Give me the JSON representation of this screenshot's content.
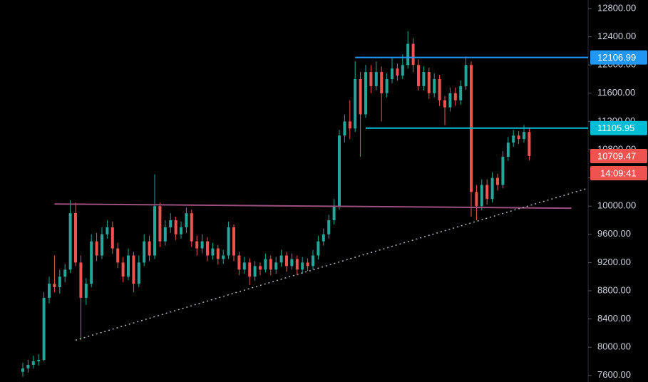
{
  "chart_data": {
    "type": "candlestick",
    "up_color": "#26a69a",
    "down_color": "#ef5350",
    "candles": [
      [
        7650,
        7780,
        7580,
        7700
      ],
      [
        7700,
        7820,
        7640,
        7750
      ],
      [
        7750,
        7880,
        7700,
        7800
      ],
      [
        7800,
        7900,
        7740,
        7820
      ],
      [
        7820,
        8780,
        7800,
        8700
      ],
      [
        8700,
        9000,
        8620,
        8900
      ],
      [
        8900,
        9300,
        8780,
        8850
      ],
      [
        8850,
        9100,
        8760,
        9000
      ],
      [
        9000,
        9180,
        8920,
        9100
      ],
      [
        9100,
        10080,
        9050,
        9900
      ],
      [
        9900,
        10050,
        9150,
        9200
      ],
      [
        9200,
        9300,
        8100,
        8700
      ],
      [
        8700,
        8980,
        8600,
        8900
      ],
      [
        8900,
        9600,
        8850,
        9500
      ],
      [
        9500,
        9620,
        9220,
        9300
      ],
      [
        9300,
        9700,
        9250,
        9600
      ],
      [
        9600,
        9800,
        9540,
        9700
      ],
      [
        9700,
        9780,
        9320,
        9400
      ],
      [
        9400,
        9480,
        9120,
        9200
      ],
      [
        9200,
        9280,
        8920,
        9000
      ],
      [
        9000,
        9400,
        8950,
        9300
      ],
      [
        9300,
        9350,
        8780,
        8900
      ],
      [
        8900,
        9300,
        8850,
        9200
      ],
      [
        9200,
        9600,
        9150,
        9500
      ],
      [
        9500,
        9580,
        9220,
        9300
      ],
      [
        9300,
        10450,
        9250,
        10000
      ],
      [
        10000,
        10050,
        9420,
        9500
      ],
      [
        9500,
        9800,
        9440,
        9700
      ],
      [
        9700,
        9900,
        9620,
        9800
      ],
      [
        9800,
        9850,
        9520,
        9600
      ],
      [
        9600,
        9780,
        9540,
        9700
      ],
      [
        9700,
        9980,
        9620,
        9900
      ],
      [
        9900,
        9950,
        9420,
        9500
      ],
      [
        9500,
        9580,
        9300,
        9400
      ],
      [
        9400,
        9600,
        9330,
        9500
      ],
      [
        9500,
        9560,
        9220,
        9300
      ],
      [
        9300,
        9480,
        9240,
        9400
      ],
      [
        9400,
        9450,
        9170,
        9250
      ],
      [
        9250,
        9380,
        9180,
        9300
      ],
      [
        9300,
        9780,
        9250,
        9700
      ],
      [
        9700,
        9740,
        9220,
        9300
      ],
      [
        9300,
        9350,
        9020,
        9100
      ],
      [
        9100,
        9280,
        9040,
        9200
      ],
      [
        9200,
        9260,
        8880,
        9000
      ],
      [
        9000,
        9220,
        8940,
        9150
      ],
      [
        9150,
        9200,
        9020,
        9100
      ],
      [
        9100,
        9330,
        9060,
        9250
      ],
      [
        9250,
        9300,
        9020,
        9100
      ],
      [
        9100,
        9280,
        9040,
        9200
      ],
      [
        9200,
        9380,
        9140,
        9300
      ],
      [
        9300,
        9350,
        9070,
        9150
      ],
      [
        9150,
        9330,
        9100,
        9250
      ],
      [
        9250,
        9300,
        9020,
        9100
      ],
      [
        9100,
        9280,
        9040,
        9200
      ],
      [
        9200,
        9260,
        9080,
        9150
      ],
      [
        9150,
        9380,
        9100,
        9300
      ],
      [
        9300,
        9580,
        9240,
        9500
      ],
      [
        9500,
        9680,
        9440,
        9600
      ],
      [
        9600,
        9880,
        9540,
        9800
      ],
      [
        9800,
        10100,
        9740,
        10000
      ],
      [
        10000,
        11080,
        9950,
        11000
      ],
      [
        11000,
        11300,
        10900,
        11200
      ],
      [
        11200,
        11500,
        10950,
        11100
      ],
      [
        11100,
        12050,
        11050,
        11800
      ],
      [
        11800,
        11900,
        10700,
        11300
      ],
      [
        11300,
        12000,
        11250,
        11900
      ],
      [
        11900,
        12000,
        11600,
        11700
      ],
      [
        11700,
        12050,
        11640,
        11900
      ],
      [
        11900,
        11980,
        11200,
        11600
      ],
      [
        11600,
        11880,
        11540,
        11800
      ],
      [
        11800,
        12100,
        11740,
        11950
      ],
      [
        11950,
        12020,
        11780,
        11850
      ],
      [
        11850,
        12150,
        11800,
        12000
      ],
      [
        12000,
        12480,
        11950,
        12300
      ],
      [
        12300,
        12380,
        11900,
        12000
      ],
      [
        12000,
        12080,
        11640,
        11700
      ],
      [
        11700,
        11980,
        11640,
        11900
      ],
      [
        11900,
        11960,
        11520,
        11600
      ],
      [
        11600,
        11880,
        11540,
        11800
      ],
      [
        11800,
        11860,
        11420,
        11500
      ],
      [
        11500,
        11560,
        11150,
        11400
      ],
      [
        11400,
        11680,
        11340,
        11600
      ],
      [
        11600,
        11680,
        11420,
        11500
      ],
      [
        11500,
        11780,
        11440,
        11700
      ],
      [
        11700,
        12120,
        11650,
        12000
      ],
      [
        12000,
        12050,
        9850,
        10200
      ],
      [
        10200,
        10300,
        9800,
        10000
      ],
      [
        10000,
        10380,
        9940,
        10300
      ],
      [
        10300,
        10380,
        10020,
        10100
      ],
      [
        10100,
        10480,
        10050,
        10400
      ],
      [
        10400,
        10460,
        10220,
        10300
      ],
      [
        10300,
        10780,
        10250,
        10700
      ],
      [
        10700,
        10980,
        10640,
        10900
      ],
      [
        10900,
        11080,
        10840,
        11000
      ],
      [
        11000,
        11060,
        10880,
        10950
      ],
      [
        10950,
        11150,
        10900,
        11050
      ],
      [
        11050,
        11100,
        10650,
        10709.47
      ]
    ],
    "ylim": [
      7507,
      12921
    ],
    "yticks": [
      {
        "value": 7600,
        "label": "7600.00"
      },
      {
        "value": 8000,
        "label": "8000.00"
      },
      {
        "value": 8400,
        "label": "8400.00"
      },
      {
        "value": 8800,
        "label": "8800.00"
      },
      {
        "value": 9200,
        "label": "9200.00"
      },
      {
        "value": 9600,
        "label": "9600.00"
      },
      {
        "value": 10000,
        "label": "10000.00"
      },
      {
        "value": 10400,
        "label": "10400.00"
      },
      {
        "value": 10800,
        "label": "10800.00"
      },
      {
        "value": 11200,
        "label": "11200.00"
      },
      {
        "value": 11600,
        "label": "11600.00"
      },
      {
        "value": 12000,
        "label": "12000.00"
      },
      {
        "value": 12400,
        "label": "12400.00"
      },
      {
        "value": 12800,
        "label": "12800.00"
      }
    ],
    "levels": [
      {
        "value": 12106.99,
        "from": 63,
        "color": "#2196f3"
      },
      {
        "value": 11105.95,
        "from": 65,
        "color": "#00bcd4"
      }
    ],
    "trendlines": [
      {
        "points": [
          [
            6,
            10030
          ],
          [
            104,
            9970
          ]
        ],
        "color": "#9c4f7e",
        "dotted": false
      },
      {
        "points": [
          [
            10,
            8100
          ],
          [
            107,
            10250
          ]
        ],
        "color": "#b2b5be",
        "dotted": true
      }
    ],
    "countdown": "14:09:41"
  }
}
